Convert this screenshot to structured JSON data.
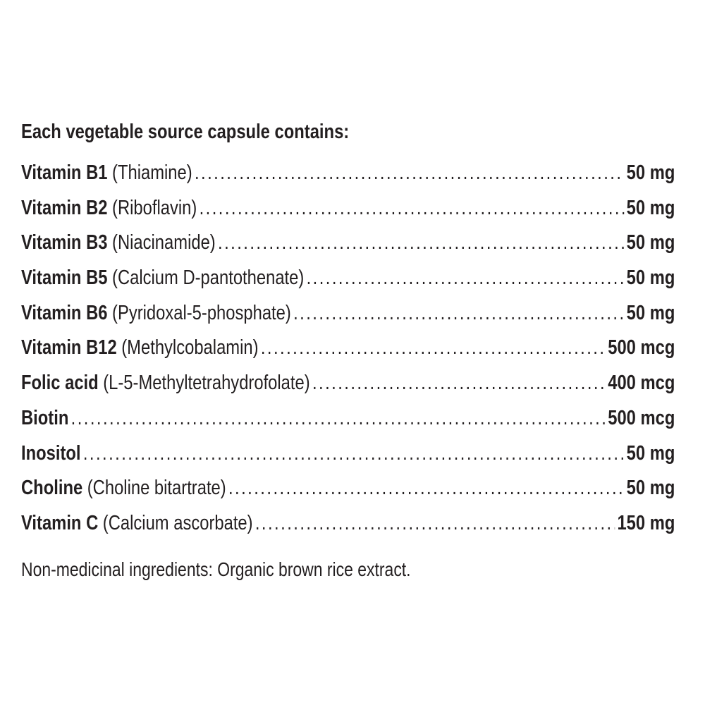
{
  "heading": "Each vegetable source capsule contains:",
  "ingredients": [
    {
      "name": "Vitamin B1",
      "desc": "(Thiamine)",
      "amount": "50 mg"
    },
    {
      "name": "Vitamin B2",
      "desc": "(Riboflavin)",
      "amount": "50 mg"
    },
    {
      "name": "Vitamin B3",
      "desc": "(Niacinamide)",
      "amount": "50 mg"
    },
    {
      "name": "Vitamin B5",
      "desc": "(Calcium D-pantothenate)",
      "amount": "50 mg"
    },
    {
      "name": "Vitamin B6",
      "desc": "(Pyridoxal-5-phosphate)",
      "amount": "50 mg"
    },
    {
      "name": "Vitamin B12",
      "desc": "(Methylcobalamin)",
      "amount": "500 mcg"
    },
    {
      "name": "Folic acid",
      "desc": "(L-5-Methyltetrahydrofolate)",
      "amount": "400 mcg"
    },
    {
      "name": "Biotin",
      "desc": "",
      "amount": "500 mcg"
    },
    {
      "name": "Inositol",
      "desc": "",
      "amount": "50 mg"
    },
    {
      "name": "Choline",
      "desc": "(Choline bitartrate)",
      "amount": "50 mg"
    },
    {
      "name": "Vitamin C",
      "desc": "(Calcium ascorbate)",
      "amount": "150 mg"
    }
  ],
  "footer": "Non-medicinal ingredients: Organic brown rice extract."
}
